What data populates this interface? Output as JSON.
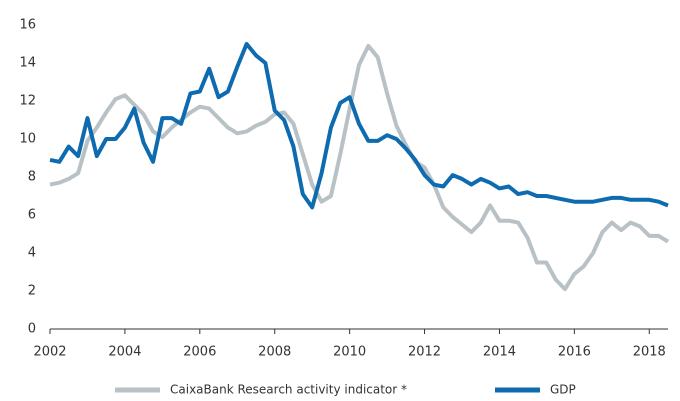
{
  "chart_data": {
    "type": "line",
    "x": [
      2002,
      2002.25,
      2002.5,
      2002.75,
      2003,
      2003.25,
      2003.5,
      2003.75,
      2004,
      2004.25,
      2004.5,
      2004.75,
      2005,
      2005.25,
      2005.5,
      2005.75,
      2006,
      2006.25,
      2006.5,
      2006.75,
      2007,
      2007.25,
      2007.5,
      2007.75,
      2008,
      2008.25,
      2008.5,
      2008.75,
      2009,
      2009.25,
      2009.5,
      2009.75,
      2010,
      2010.25,
      2010.5,
      2010.75,
      2011,
      2011.25,
      2011.5,
      2011.75,
      2012,
      2012.25,
      2012.5,
      2012.75,
      2013,
      2013.25,
      2013.5,
      2013.75,
      2014,
      2014.25,
      2014.5,
      2014.75,
      2015,
      2015.25,
      2015.5,
      2015.75,
      2016,
      2016.25,
      2016.5,
      2016.75,
      2017,
      2017.25,
      2017.5,
      2017.75,
      2018,
      2018.25,
      2018.5
    ],
    "series": [
      {
        "name": "CaixaBank Research activity indicator *",
        "color": "#b8c2c6",
        "values": [
          7.6,
          7.7,
          7.9,
          8.2,
          9.9,
          10.6,
          11.4,
          12.1,
          12.3,
          11.8,
          11.3,
          10.4,
          10.1,
          10.6,
          11.0,
          11.4,
          11.7,
          11.6,
          11.1,
          10.6,
          10.3,
          10.4,
          10.7,
          10.9,
          11.3,
          11.4,
          10.8,
          9.2,
          7.6,
          6.7,
          7.0,
          9.2,
          11.6,
          13.9,
          14.9,
          14.3,
          12.4,
          10.7,
          9.7,
          8.8,
          8.5,
          7.6,
          6.4,
          5.9,
          5.5,
          5.1,
          5.6,
          6.5,
          5.7,
          5.7,
          5.6,
          4.8,
          3.5,
          3.5,
          2.6,
          2.1,
          2.9,
          3.3,
          4.0,
          5.1,
          5.6,
          5.2,
          5.6,
          5.4,
          4.9,
          4.9,
          4.6
        ]
      },
      {
        "name": "GDP",
        "color": "#0f6bb0",
        "values": [
          8.9,
          8.8,
          9.6,
          9.1,
          11.1,
          9.1,
          10.0,
          10.0,
          10.6,
          11.6,
          9.8,
          8.8,
          11.1,
          11.1,
          10.8,
          12.4,
          12.5,
          13.7,
          12.2,
          12.5,
          13.8,
          15.0,
          14.4,
          14.0,
          11.5,
          11.0,
          9.6,
          7.1,
          6.4,
          8.2,
          10.6,
          11.9,
          12.2,
          10.8,
          9.9,
          9.9,
          10.2,
          10.0,
          9.5,
          8.9,
          8.1,
          7.6,
          7.5,
          8.1,
          7.9,
          7.6,
          7.9,
          7.7,
          7.4,
          7.5,
          7.1,
          7.2,
          7.0,
          7.0,
          6.9,
          6.8,
          6.7,
          6.7,
          6.7,
          6.8,
          6.9,
          6.9,
          6.8,
          6.8,
          6.8,
          6.7,
          6.5
        ]
      }
    ],
    "xlim": [
      2002,
      2018.5
    ],
    "xticks": [
      2002,
      2004,
      2006,
      2008,
      2010,
      2012,
      2014,
      2016,
      2018
    ],
    "ylim": [
      0,
      16
    ],
    "yticks": [
      0,
      2,
      4,
      6,
      8,
      10,
      12,
      14,
      16
    ],
    "grid": false
  }
}
